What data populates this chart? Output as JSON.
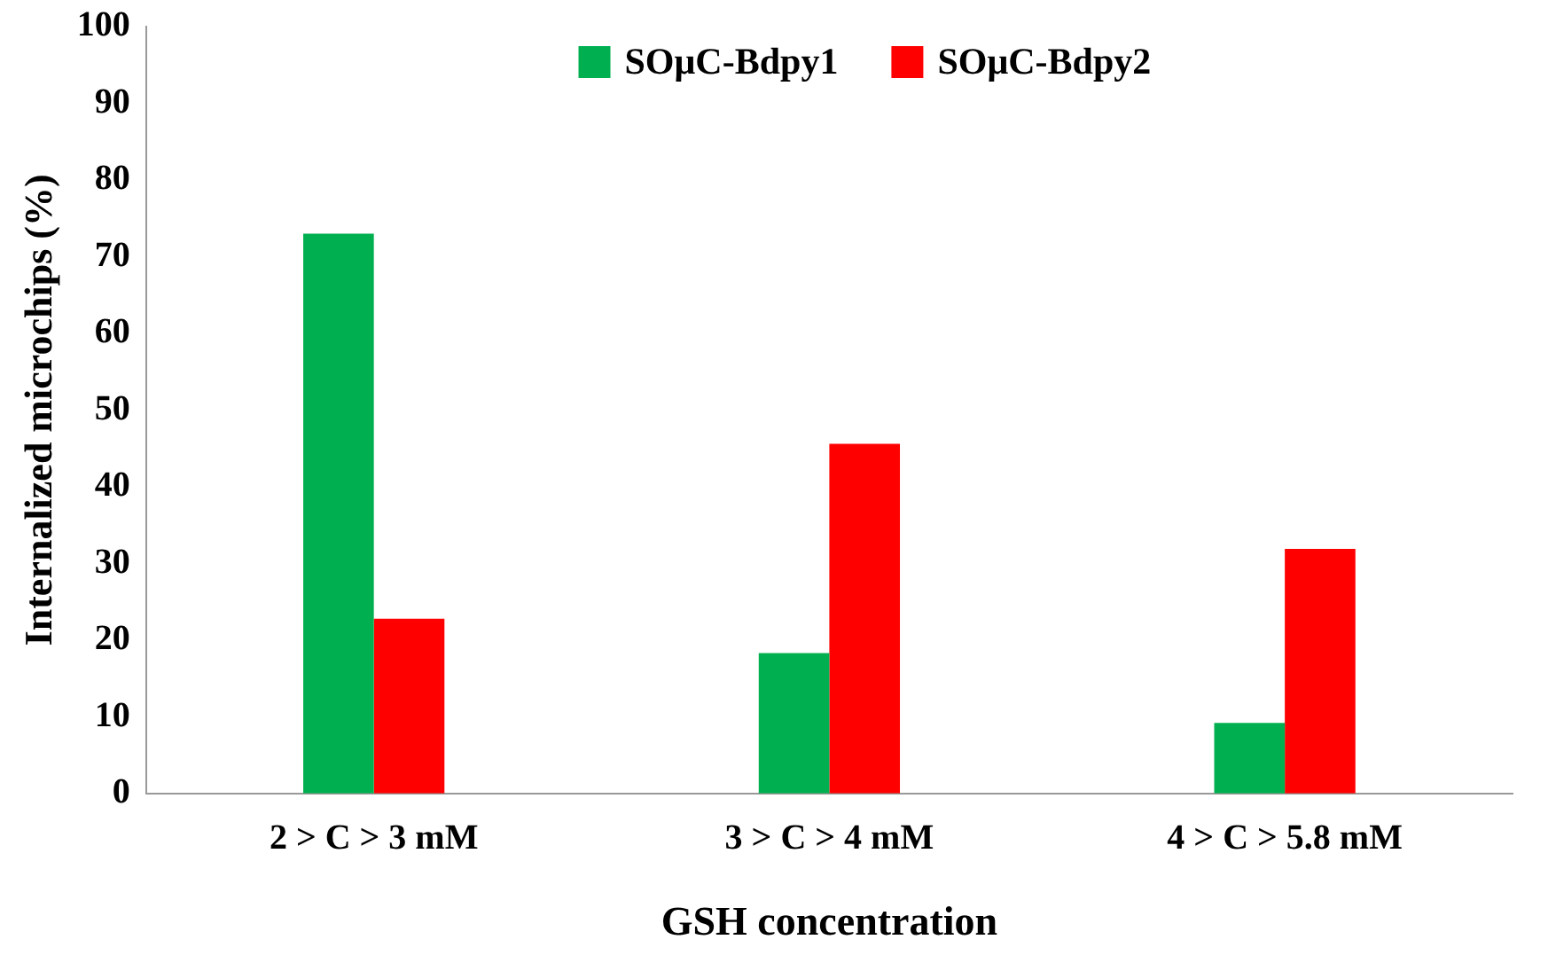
{
  "chart_data": {
    "type": "bar",
    "xlabel": "GSH concentration",
    "ylabel": "Internalized microchips (%)",
    "categories": [
      "2 > C > 3 mM",
      "3 > C > 4 mM",
      "4 > C > 5.8 mM"
    ],
    "series": [
      {
        "name": "SOμC-Bdpy1",
        "color": "#00b050",
        "values": [
          73,
          18.3,
          9.2
        ]
      },
      {
        "name": "SOμC-Bdpy2",
        "color": "#ff0000",
        "values": [
          22.8,
          45.6,
          31.9
        ]
      }
    ],
    "ylim": [
      0,
      100
    ],
    "yticks": [
      0,
      10,
      20,
      30,
      40,
      50,
      60,
      70,
      80,
      90,
      100
    ],
    "grid": false,
    "legend": "top"
  }
}
